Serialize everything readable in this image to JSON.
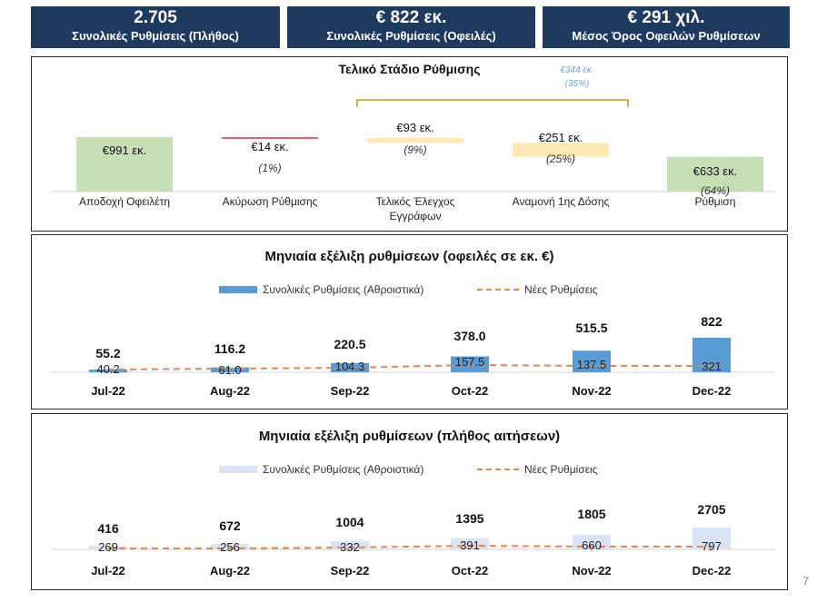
{
  "kpis": [
    {
      "value": "2.705",
      "label": "Συνολικές Ρυθμίσεις (Πλήθος)"
    },
    {
      "value": "€ 822 εκ.",
      "label": "Συνολικές Ρυθμίσεις (Οφειλές)"
    },
    {
      "value": "€ 291 χιλ.",
      "label": "Μέσος Όρος Οφειλών Ρυθμίσεων"
    }
  ],
  "page_number": "7",
  "colors": {
    "navy": "#1f3a5f",
    "green": "#c5e0b4",
    "red": "#e06666",
    "yellow": "#ffe8b3",
    "bar_blue": "#5b9bd5",
    "bar_light": "#dae3f3",
    "dash_orange": "#e8874a",
    "bracket": "#c8951a",
    "bracket_text": "#6fa3d8"
  },
  "chart_data": [
    {
      "type": "bar",
      "title": "Τελικό Στάδιο Ρύθμισης",
      "categories": [
        "Αποδοχή Οφειλέτη",
        "Ακύρωση Ρύθμισης",
        "Τελικός Έλεγχος Εγγράφων",
        "Αναμονή 1ης Δόσης",
        "Ρύθμιση"
      ],
      "values": [
        991,
        14,
        93,
        251,
        633
      ],
      "value_labels": [
        "€991 εκ.",
        "€14 εκ.",
        "€93 εκ.",
        "€251 εκ.",
        "€633 εκ."
      ],
      "percent_labels": [
        "",
        "(1%)",
        "(9%)",
        "(25%)",
        "(64%)"
      ],
      "bracket": {
        "value_label": "€344 εκ.",
        "percent_label": "(35%)",
        "spans": [
          "Τελικός Έλεγχος Εγγράφων",
          "Αναμονή 1ης Δόσης"
        ]
      },
      "category_label_lines": [
        [
          "Αποδοχή Οφειλέτη"
        ],
        [
          "Ακύρωση Ρύθμισης"
        ],
        [
          "Τελικός Έλεγχος",
          "Εγγράφων"
        ],
        [
          "Αναμονή 1ης Δόσης"
        ],
        [
          "Ρύθμιση"
        ]
      ]
    },
    {
      "type": "bar",
      "title": "Μηνιαία εξέλιξη ρυθμίσεων (οφειλές σε εκ. €)",
      "categories": [
        "Jul-22",
        "Aug-22",
        "Sep-22",
        "Oct-22",
        "Nov-22",
        "Dec-22"
      ],
      "series": [
        {
          "name": "Συνολικές Ρυθμίσεις (Αθροιστικά)",
          "kind": "bar",
          "values": [
            55.2,
            116.2,
            220.5,
            378.0,
            515.5,
            822
          ],
          "labels": [
            "55.2",
            "116.2",
            "220.5",
            "378.0",
            "515.5",
            "822"
          ]
        },
        {
          "name": "Νέες Ρυθμίσεις",
          "kind": "dashed-line",
          "values": [
            40.2,
            61.0,
            104.3,
            157.5,
            137.5,
            321
          ],
          "labels": [
            "40.2",
            "61.0",
            "104.3",
            "157.5",
            "137.5",
            "321"
          ]
        }
      ],
      "legend": "top-center"
    },
    {
      "type": "bar",
      "title": "Μηνιαία εξέλιξη ρυθμίσεων (πλήθος αιτήσεων)",
      "categories": [
        "Jul-22",
        "Aug-22",
        "Sep-22",
        "Oct-22",
        "Nov-22",
        "Dec-22"
      ],
      "series": [
        {
          "name": "Συνολικές Ρυθμίσεις (Αθροιστικά)",
          "kind": "bar",
          "values": [
            416,
            672,
            1004,
            1395,
            1805,
            2705
          ],
          "labels": [
            "416",
            "672",
            "1004",
            "1395",
            "1805",
            "2705"
          ]
        },
        {
          "name": "Νέες Ρυθμίσεις",
          "kind": "dashed-line",
          "values": [
            269,
            256,
            332,
            391,
            660,
            797
          ],
          "labels": [
            "269",
            "256",
            "332",
            "391",
            "660",
            "797"
          ]
        }
      ],
      "legend": "top-center"
    }
  ]
}
